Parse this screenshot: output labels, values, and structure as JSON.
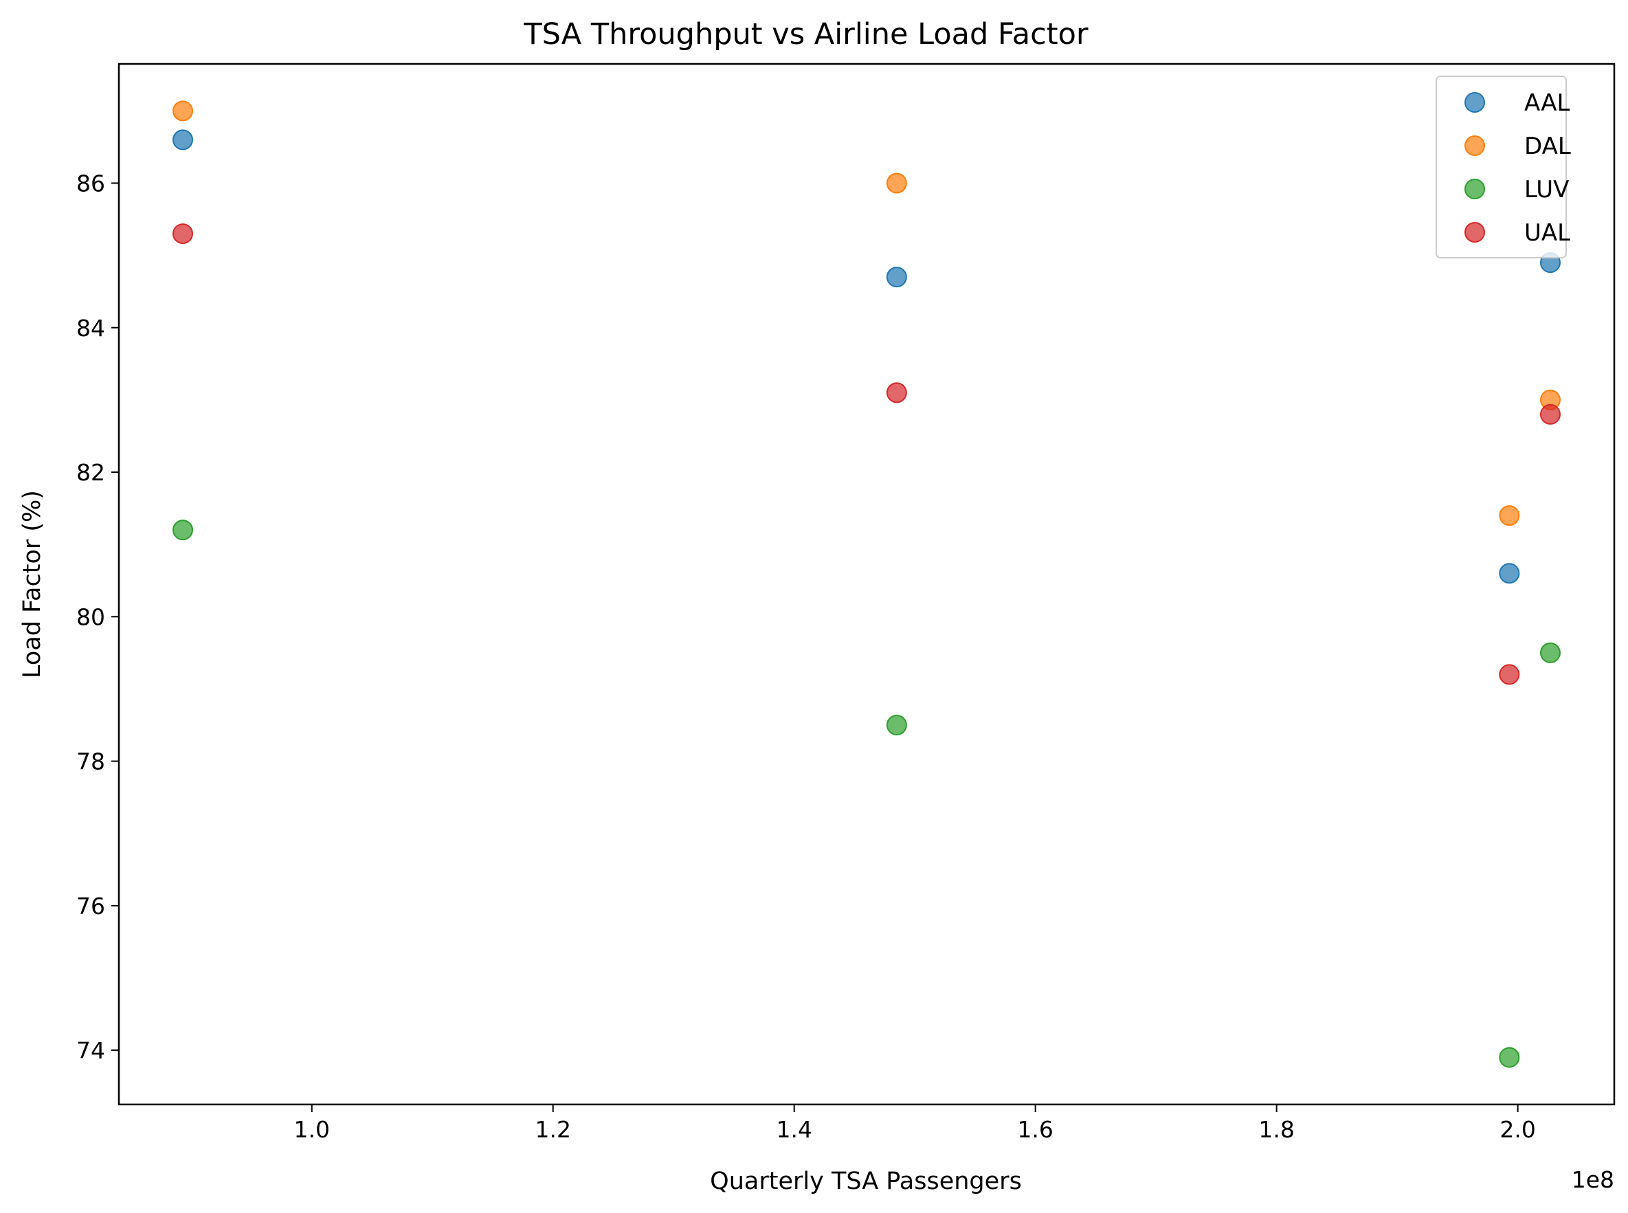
{
  "chart_data": {
    "type": "scatter",
    "title": "TSA Throughput vs Airline Load Factor",
    "xlabel": "Quarterly TSA Passengers",
    "ylabel": "Load Factor (%)",
    "x_offset_label": "1e8",
    "x_scale_factor": 100000000,
    "xlim": [
      84000000,
      208000000
    ],
    "ylim": [
      73.25,
      87.65
    ],
    "x_ticks": [
      100000000,
      120000000,
      140000000,
      160000000,
      180000000,
      200000000
    ],
    "x_tick_labels": [
      "1.0",
      "1.2",
      "1.4",
      "1.6",
      "1.8",
      "2.0"
    ],
    "y_ticks": [
      74,
      76,
      78,
      80,
      82,
      84,
      86
    ],
    "y_tick_labels": [
      "74",
      "76",
      "78",
      "80",
      "82",
      "84",
      "86"
    ],
    "grid": false,
    "legend_position": "upper right",
    "series": [
      {
        "name": "AAL",
        "color": "#1f77b4",
        "x": [
          89300000,
          148500000,
          199300000,
          202700000
        ],
        "y": [
          86.6,
          84.7,
          80.6,
          84.9
        ]
      },
      {
        "name": "DAL",
        "color": "#ff7f0e",
        "x": [
          89300000,
          148500000,
          199300000,
          202700000
        ],
        "y": [
          87.0,
          86.0,
          81.4,
          83.0
        ]
      },
      {
        "name": "LUV",
        "color": "#2ca02c",
        "x": [
          89300000,
          148500000,
          199300000,
          202700000
        ],
        "y": [
          81.2,
          78.5,
          73.9,
          79.5
        ]
      },
      {
        "name": "UAL",
        "color": "#d62728",
        "x": [
          89300000,
          148500000,
          199300000,
          202700000
        ],
        "y": [
          85.3,
          83.1,
          79.2,
          82.8
        ]
      }
    ]
  }
}
